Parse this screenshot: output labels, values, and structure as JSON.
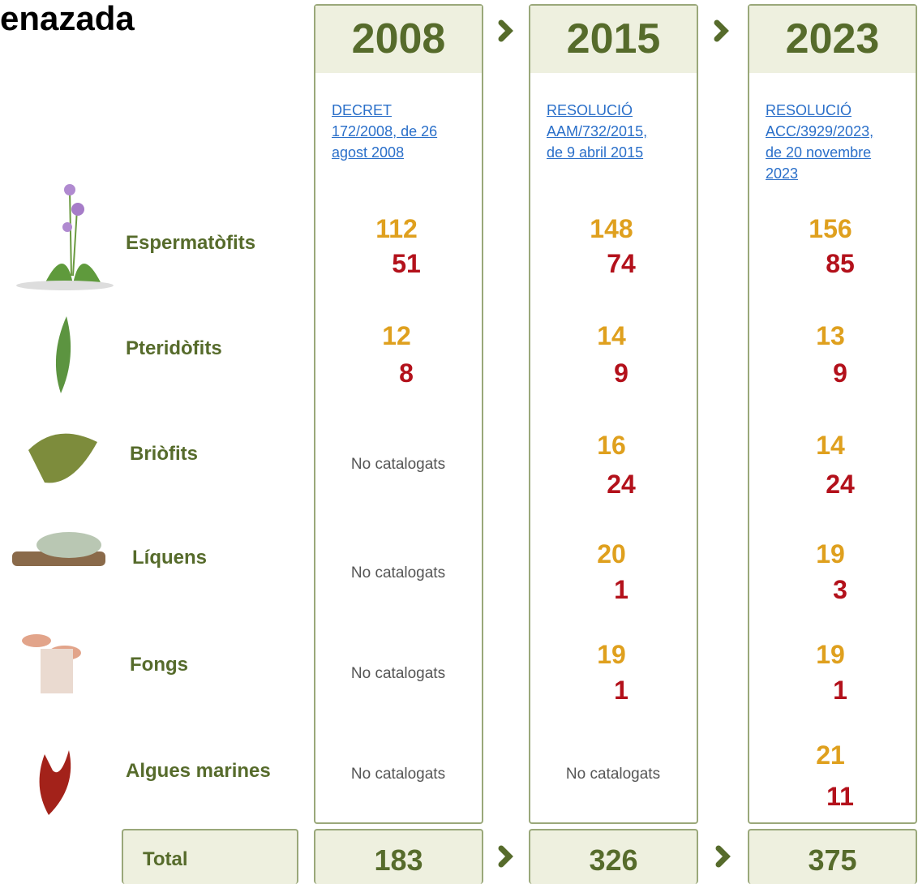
{
  "header": {
    "title": "enazada"
  },
  "groups": [
    "Espermatòfits",
    "Pteridòfits",
    "Briòfits",
    "Líquens",
    "Fongs",
    "Algues marines"
  ],
  "total_label": "Total",
  "columns": [
    {
      "year": "2008",
      "reference": [
        "DECRET",
        "172/2008, de 26",
        "agost 2008"
      ],
      "cells": [
        {
          "counts": [
            112,
            51
          ]
        },
        {
          "counts": [
            12,
            8
          ]
        },
        {
          "note": "No catalogats"
        },
        {
          "note": "No catalogats"
        },
        {
          "note": "No catalogats"
        },
        {
          "note": "No catalogats"
        }
      ],
      "total": 183
    },
    {
      "year": "2015",
      "reference": [
        "RESOLUCIÓ",
        "AAM/732/2015,",
        "de 9 abril 2015"
      ],
      "cells": [
        {
          "counts": [
            148,
            74
          ]
        },
        {
          "counts": [
            14,
            9
          ]
        },
        {
          "counts": [
            16,
            24
          ]
        },
        {
          "counts": [
            20,
            1
          ]
        },
        {
          "counts": [
            19,
            1
          ]
        },
        {
          "note": "No catalogats"
        }
      ],
      "total": 326
    },
    {
      "year": "2023",
      "reference": [
        "RESOLUCIÓ",
        "ACC/3929/2023,",
        "de 20 novembre",
        "2023"
      ],
      "cells": [
        {
          "counts": [
            156,
            85
          ]
        },
        {
          "counts": [
            13,
            9
          ]
        },
        {
          "counts": [
            14,
            24
          ]
        },
        {
          "counts": [
            19,
            3
          ]
        },
        {
          "counts": [
            19,
            1
          ]
        },
        {
          "counts": [
            21,
            11
          ]
        }
      ],
      "total": 375
    }
  ]
}
